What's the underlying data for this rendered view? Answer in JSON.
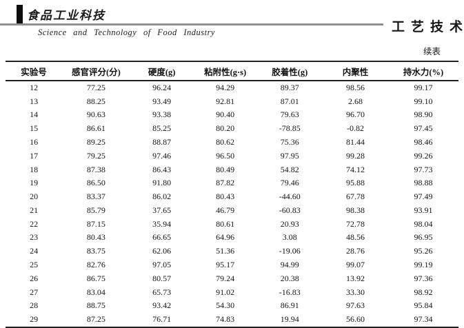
{
  "masthead": {
    "logo": "食品工业科技",
    "subtitle": "Science and Technology of Food Industry",
    "section": "工艺技术"
  },
  "table": {
    "continued_label": "续表",
    "columns": [
      "实验号",
      "感官评分(分)",
      "硬度(g)",
      "粘附性(g·s)",
      "胶着性(g)",
      "内聚性",
      "持水力(%)"
    ],
    "rows": [
      [
        "12",
        "77.25",
        "96.24",
        "94.29",
        "89.37",
        "98.56",
        "99.17"
      ],
      [
        "13",
        "88.25",
        "93.49",
        "92.81",
        "87.01",
        "2.68",
        "99.10"
      ],
      [
        "14",
        "90.63",
        "93.38",
        "90.40",
        "79.63",
        "96.70",
        "98.90"
      ],
      [
        "15",
        "86.61",
        "85.25",
        "80.20",
        "-78.85",
        "-0.82",
        "97.45"
      ],
      [
        "16",
        "89.25",
        "88.87",
        "80.62",
        "75.36",
        "81.44",
        "98.46"
      ],
      [
        "17",
        "79.25",
        "97.46",
        "96.50",
        "97.95",
        "99.28",
        "99.26"
      ],
      [
        "18",
        "87.38",
        "86.43",
        "80.49",
        "54.82",
        "74.12",
        "97.73"
      ],
      [
        "19",
        "86.50",
        "91.80",
        "87.82",
        "79.46",
        "95.88",
        "98.88"
      ],
      [
        "20",
        "83.37",
        "86.02",
        "80.43",
        "-44.60",
        "67.78",
        "97.49"
      ],
      [
        "21",
        "85.79",
        "37.65",
        "46.79",
        "-60.83",
        "98.38",
        "93.91"
      ],
      [
        "22",
        "87.15",
        "35.94",
        "80.61",
        "20.93",
        "72.78",
        "98.04"
      ],
      [
        "23",
        "80.43",
        "66.65",
        "64.96",
        "3.08",
        "48.56",
        "96.95"
      ],
      [
        "24",
        "83.75",
        "62.06",
        "51.36",
        "-19.06",
        "28.76",
        "95.26"
      ],
      [
        "25",
        "82.76",
        "97.05",
        "95.17",
        "94.99",
        "99.07",
        "99.19"
      ],
      [
        "26",
        "86.75",
        "80.57",
        "79.24",
        "20.38",
        "13.92",
        "97.36"
      ],
      [
        "27",
        "83.04",
        "65.73",
        "91.02",
        "-16.83",
        "33.30",
        "98.92"
      ],
      [
        "28",
        "88.75",
        "93.42",
        "54.30",
        "86.91",
        "97.63",
        "95.84"
      ],
      [
        "29",
        "87.25",
        "76.71",
        "74.83",
        "19.94",
        "56.60",
        "97.34"
      ]
    ]
  }
}
